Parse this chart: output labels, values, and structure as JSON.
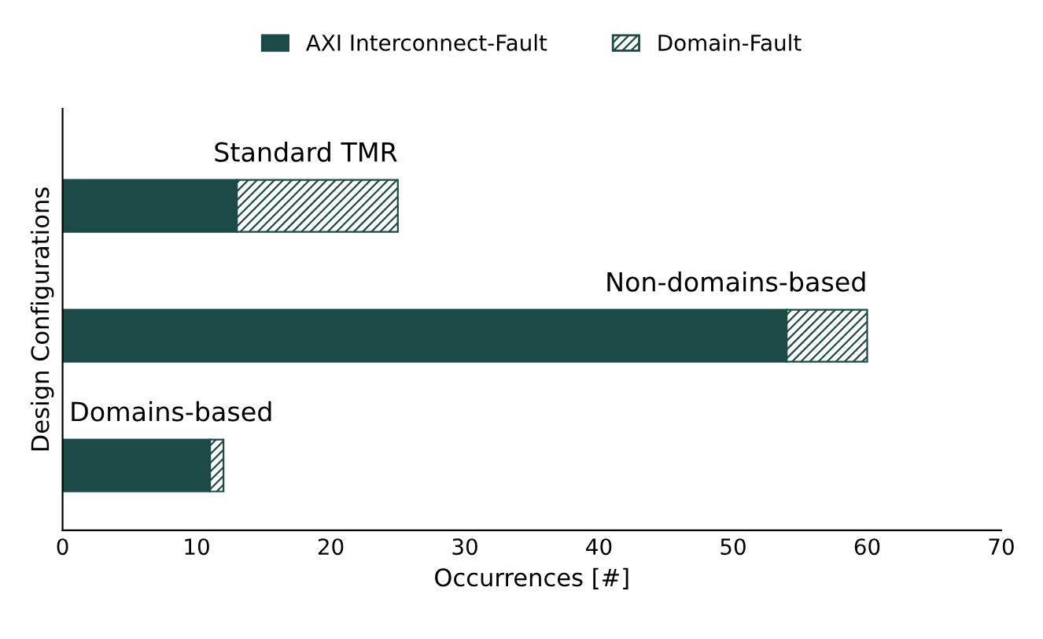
{
  "chart_data": {
    "type": "bar",
    "orientation": "horizontal",
    "stacked": true,
    "categories": [
      "Standard TMR",
      "Non-domains-based",
      "Domains-based"
    ],
    "series": [
      {
        "name": "AXI Interconnect-Fault",
        "color": "#1b4a47",
        "values": [
          13,
          54,
          11
        ]
      },
      {
        "name": "Domain-Fault",
        "color": "#1b4a47",
        "values": [
          12,
          6,
          1
        ]
      }
    ],
    "xlabel": "Occurrences [#]",
    "ylabel": "Design Configurations",
    "xlim": [
      0,
      70
    ],
    "xticks": [
      0,
      10,
      20,
      30,
      40,
      50,
      60,
      70
    ],
    "legend": "top",
    "grid": false
  }
}
